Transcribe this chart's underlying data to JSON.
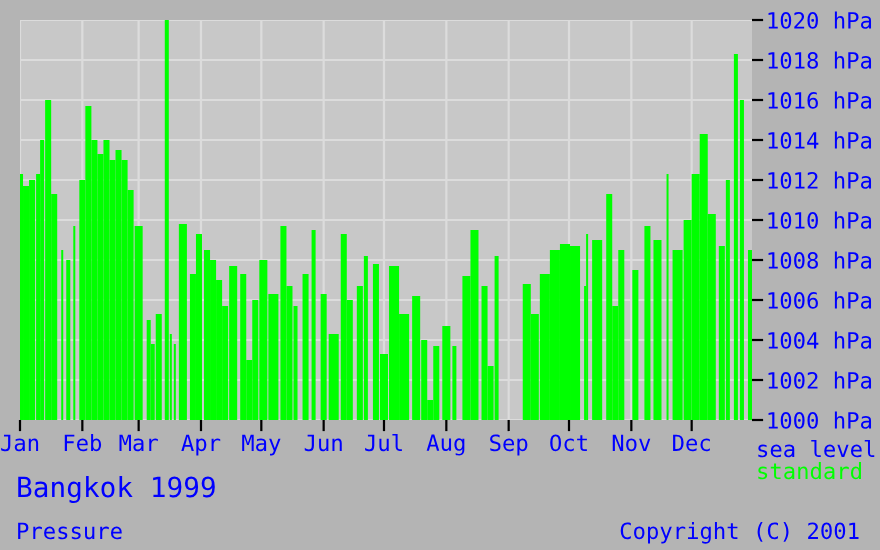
{
  "chart_data": {
    "type": "bar",
    "title": "Bangkok 1999",
    "subtitle": "Pressure",
    "annotations": [
      "sea level",
      "Copyright (C) 2001"
    ],
    "x": [
      "1999-01-01",
      "1999-01-04",
      "1999-01-07",
      "1999-01-10",
      "1999-01-12",
      "1999-01-15",
      "1999-01-18",
      "1999-01-21",
      "1999-01-22",
      "1999-01-25",
      "1999-01-27",
      "1999-01-28",
      "1999-02-01",
      "1999-02-04",
      "1999-02-07",
      "1999-02-10",
      "1999-02-13",
      "1999-02-16",
      "1999-02-19",
      "1999-02-22",
      "1999-02-25",
      "1999-03-01",
      "1999-03-06",
      "1999-03-08",
      "1999-03-11",
      "1999-03-15",
      "1999-03-17",
      "1999-03-18",
      "1999-03-19",
      "1999-03-23",
      "1999-03-28",
      "1999-03-31",
      "1999-04-04",
      "1999-04-07",
      "1999-04-10",
      "1999-04-13",
      "1999-04-17",
      "1999-04-22",
      "1999-04-25",
      "1999-04-28",
      "1999-05-02",
      "1999-05-07",
      "1999-05-12",
      "1999-05-15",
      "1999-05-18",
      "1999-05-20",
      "1999-05-23",
      "1999-05-27",
      "1999-05-29",
      "1999-06-01",
      "1999-06-06",
      "1999-06-11",
      "1999-06-14",
      "1999-06-19",
      "1999-06-22",
      "1999-06-24",
      "1999-06-27",
      "1999-07-01",
      "1999-07-06",
      "1999-07-11",
      "1999-07-17",
      "1999-07-21",
      "1999-07-24",
      "1999-07-27",
      "1999-08-01",
      "1999-08-05",
      "1999-08-07",
      "1999-08-11",
      "1999-08-15",
      "1999-08-20",
      "1999-08-23",
      "1999-08-26",
      "1999-08-28",
      "1999-09-10",
      "1999-09-14",
      "1999-09-19",
      "1999-09-24",
      "1999-09-29",
      "1999-10-04",
      "1999-10-09",
      "1999-10-10",
      "1999-10-15",
      "1999-10-21",
      "1999-10-24",
      "1999-10-27",
      "1999-10-30",
      "1999-11-03",
      "1999-11-06",
      "1999-11-09",
      "1999-11-14",
      "1999-11-18",
      "1999-11-19",
      "1999-11-24",
      "1999-11-29",
      "1999-12-03",
      "1999-12-07",
      "1999-12-11",
      "1999-12-16",
      "1999-12-19",
      "1999-12-21",
      "1999-12-23",
      "1999-12-26",
      "1999-12-28",
      "1999-12-30"
    ],
    "series": [
      {
        "name": "standard",
        "color": "#00ff00",
        "values": [
          1012.3,
          1011.7,
          1012,
          1012.3,
          1014,
          1016,
          1011.3,
          null,
          1008.5,
          1008,
          null,
          1009.7,
          1012,
          1015.7,
          1014,
          1013.3,
          1014,
          1013,
          1013.5,
          1013,
          1011.5,
          1009.7,
          1005,
          1003.8,
          1005.3,
          1020,
          1004.3,
          null,
          1003.8,
          1009.8,
          1007.3,
          1009.3,
          1008.5,
          1008,
          1007,
          1005.7,
          1007.7,
          1007.3,
          1003,
          1006,
          1008,
          1006.3,
          1009.7,
          1006.7,
          1005.7,
          null,
          1007.3,
          1009.5,
          null,
          1006.3,
          1004.3,
          1009.3,
          1006,
          1006.7,
          1008.2,
          null,
          1007.8,
          1003.3,
          1007.7,
          1005.3,
          1006.2,
          1004,
          1001,
          1003.7,
          1004.7,
          1003.7,
          null,
          1007.2,
          1009.5,
          1006.7,
          1002.7,
          1008.2,
          null,
          1006.8,
          1005.3,
          1007.3,
          1008.5,
          1008.8,
          1008.7,
          1006.7,
          1009.3,
          1009,
          1011.3,
          1005.7,
          1008.5,
          null,
          1007.5,
          null,
          1009.7,
          1009,
          null,
          1012.3,
          1008.5,
          1010,
          1012.3,
          1014.3,
          1010.3,
          1008.7,
          1012,
          null,
          1018.3,
          1016,
          null,
          1008.5
        ]
      }
    ],
    "xlim": [
      "1999-01-01",
      "1999-12-31"
    ],
    "xticks": [
      {
        "value": "1999-01-01",
        "label": "Jan"
      },
      {
        "value": "1999-02-01",
        "label": "Feb"
      },
      {
        "value": "1999-03-01",
        "label": "Mar"
      },
      {
        "value": "1999-04-01",
        "label": "Apr"
      },
      {
        "value": "1999-05-01",
        "label": "May"
      },
      {
        "value": "1999-06-01",
        "label": "Jun"
      },
      {
        "value": "1999-07-01",
        "label": "Jul"
      },
      {
        "value": "1999-08-01",
        "label": "Aug"
      },
      {
        "value": "1999-09-01",
        "label": "Sep"
      },
      {
        "value": "1999-10-01",
        "label": "Oct"
      },
      {
        "value": "1999-11-01",
        "label": "Nov"
      },
      {
        "value": "1999-12-01",
        "label": "Dec"
      }
    ],
    "ylim": [
      1000,
      1020
    ],
    "yticks": [
      {
        "value": 1000,
        "label": "1000 hPa"
      },
      {
        "value": 1002,
        "label": "1002 hPa"
      },
      {
        "value": 1004,
        "label": "1004 hPa"
      },
      {
        "value": 1006,
        "label": "1006 hPa"
      },
      {
        "value": 1008,
        "label": "1008 hPa"
      },
      {
        "value": 1010,
        "label": "1010 hPa"
      },
      {
        "value": 1012,
        "label": "1012 hPa"
      },
      {
        "value": 1014,
        "label": "1014 hPa"
      },
      {
        "value": 1016,
        "label": "1016 hPa"
      },
      {
        "value": 1018,
        "label": "1018 hPa"
      },
      {
        "value": 1020,
        "label": "1020 hPa"
      }
    ],
    "grid": true
  }
}
